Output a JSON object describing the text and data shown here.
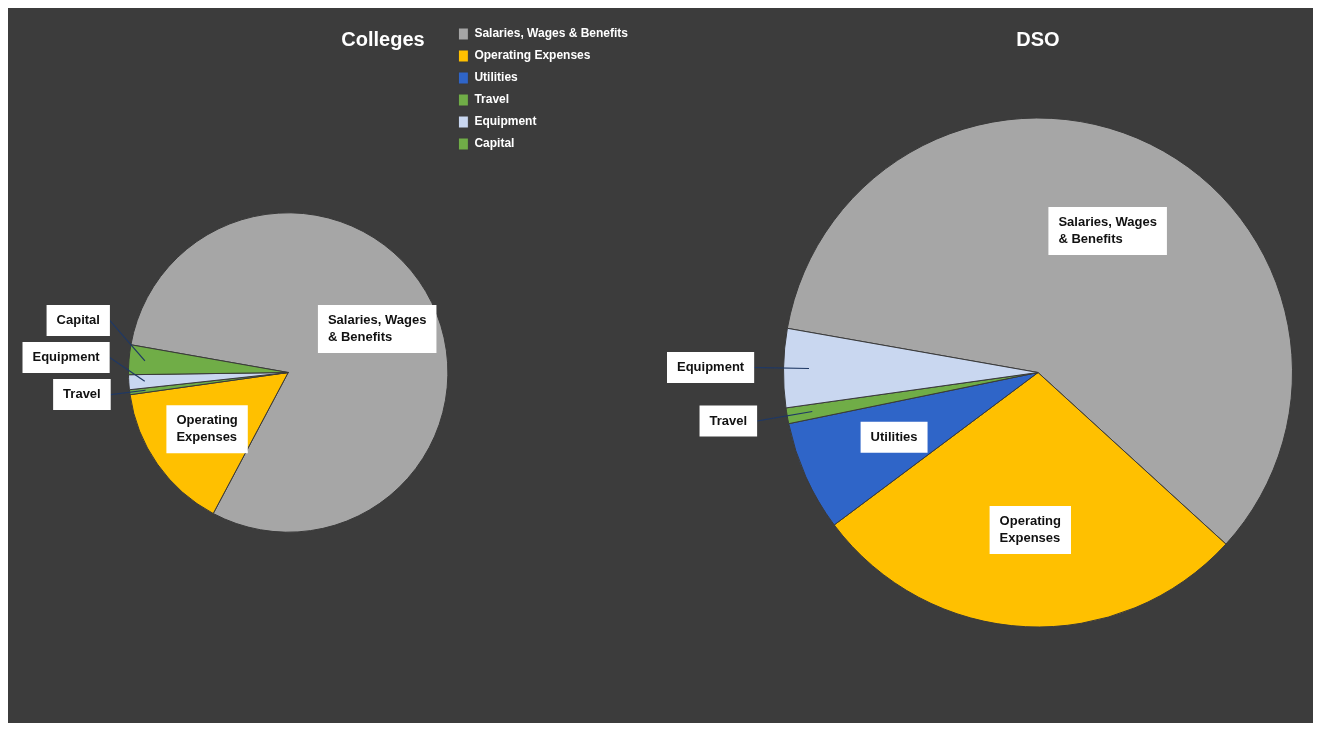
{
  "chart_data": [
    {
      "type": "pie",
      "title": "Colleges",
      "categories": [
        "Salaries, Wages & Benefits",
        "Operating Expenses",
        "Utilities",
        "Travel",
        "Equipment",
        "Capital"
      ],
      "values": [
        80,
        15,
        0,
        0.5,
        1.5,
        3
      ],
      "colors": [
        "#a6a6a6",
        "#ffc000",
        "#2f65c8",
        "#70ad47",
        "#c9d7f0",
        "#70ad47"
      ],
      "legend": "top right"
    },
    {
      "type": "pie",
      "title": "DSO",
      "categories": [
        "Salaries, Wages & Benefits",
        "Operating Expenses",
        "Utilities",
        "Travel",
        "Equipment"
      ],
      "values": [
        59,
        28,
        7,
        1,
        5
      ],
      "colors": [
        "#a6a6a6",
        "#ffc000",
        "#2f65c8",
        "#70ad47",
        "#c9d7f0"
      ],
      "legend": false
    }
  ]
}
